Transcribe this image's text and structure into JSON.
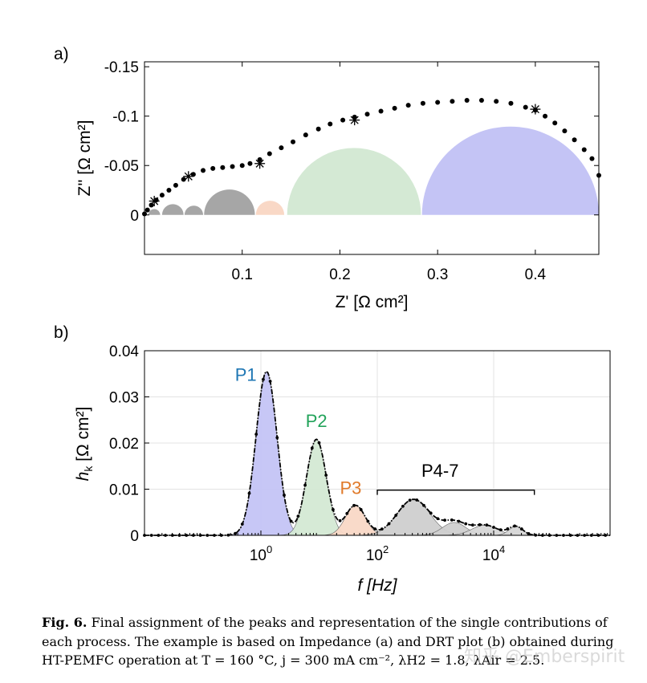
{
  "figure": {
    "caption_label": "Fig. 6.",
    "caption_text": "Final assignment of the peaks and representation of the single contributions of each process. The example is based on Impedance (a) and DRT plot (b) obtained during HT-PEMFC operation at T = 160 °C, j = 300 mA cm⁻², λH2 = 1.8, λAir = 2.5.",
    "watermark": "知乎 @Emberspirit"
  },
  "colors": {
    "arc1": "#a6a6a6",
    "arc2": "#a6a6a6",
    "arc3": "#a6a6a6",
    "p1": "#c4c4f5",
    "p2": "#d4e9d4",
    "p3": "#f9d8c6",
    "p4": "#cfcfcf",
    "p5": "#d6d6d6",
    "p1_label": "#1f77b4",
    "p2_label": "#22a35a",
    "p3_label": "#e07a2a",
    "p47_label": "#000000",
    "marker": "#000000"
  },
  "chart_data": [
    {
      "panel_label": "a)",
      "type": "scatter",
      "xlabel": "Z' [Ω cm²]",
      "ylabel": "Z'' [Ω cm²]",
      "xlim": [
        0,
        0.465
      ],
      "ylim": [
        0.04,
        -0.155
      ],
      "y_reversed": true,
      "xticks": [
        0.1,
        0.2,
        0.3,
        0.4
      ],
      "xtick_labels": [
        "0.1",
        "0.2",
        "0.3",
        "0.4"
      ],
      "yticks": [
        0,
        -0.05,
        -0.1,
        -0.15
      ],
      "ytick_labels": [
        "0",
        "-0.05",
        "-0.1",
        "-0.15"
      ],
      "grid": false,
      "measured": {
        "x": [
          0.0,
          0.003,
          0.007,
          0.012,
          0.018,
          0.025,
          0.032,
          0.04,
          0.05,
          0.06,
          0.07,
          0.08,
          0.09,
          0.1,
          0.108,
          0.118,
          0.128,
          0.14,
          0.152,
          0.165,
          0.178,
          0.19,
          0.203,
          0.215,
          0.228,
          0.242,
          0.256,
          0.27,
          0.285,
          0.3,
          0.315,
          0.33,
          0.345,
          0.36,
          0.375,
          0.39,
          0.4,
          0.41,
          0.42,
          0.43,
          0.44,
          0.45,
          0.458,
          0.465
        ],
        "y": [
          -0.001,
          -0.005,
          -0.01,
          -0.015,
          -0.02,
          -0.025,
          -0.03,
          -0.036,
          -0.041,
          -0.045,
          -0.047,
          -0.048,
          -0.049,
          -0.05,
          -0.052,
          -0.056,
          -0.062,
          -0.068,
          -0.074,
          -0.081,
          -0.087,
          -0.092,
          -0.096,
          -0.099,
          -0.102,
          -0.105,
          -0.108,
          -0.111,
          -0.113,
          -0.114,
          -0.115,
          -0.116,
          -0.116,
          -0.115,
          -0.113,
          -0.109,
          -0.106,
          -0.1,
          -0.093,
          -0.085,
          -0.076,
          -0.066,
          -0.057,
          -0.04
        ]
      },
      "stars": {
        "x": [
          0.01,
          0.045,
          0.118,
          0.215,
          0.4
        ],
        "y": [
          -0.014,
          -0.039,
          -0.052,
          -0.096,
          -0.107
        ]
      },
      "arcs": [
        {
          "x0": 0.004,
          "x1": 0.016,
          "color_key": "arc1"
        },
        {
          "x0": 0.018,
          "x1": 0.04,
          "color_key": "arc1"
        },
        {
          "x0": 0.041,
          "x1": 0.06,
          "color_key": "arc2"
        },
        {
          "x0": 0.061,
          "x1": 0.113,
          "color_key": "arc3"
        },
        {
          "x0": 0.114,
          "x1": 0.143,
          "color_key": "p3"
        },
        {
          "x0": 0.146,
          "x1": 0.283,
          "color_key": "p2"
        },
        {
          "x0": 0.284,
          "x1": 0.465,
          "color_key": "p1"
        }
      ]
    },
    {
      "panel_label": "b)",
      "type": "line",
      "xlabel": "f [Hz]",
      "ylabel_main": "h",
      "ylabel_sub": "k",
      "ylabel_unit": " [Ω cm²]",
      "x_scale": "log",
      "xlim": [
        0.01,
        1000000
      ],
      "ylim": [
        0,
        0.04
      ],
      "xticks": [
        1,
        100,
        10000
      ],
      "xtick_bases": [
        "10",
        "10",
        "10"
      ],
      "xtick_exps": [
        "0",
        "2",
        "4"
      ],
      "yticks": [
        0,
        0.01,
        0.02,
        0.03,
        0.04
      ],
      "ytick_labels": [
        "0",
        "0.01",
        "0.02",
        "0.03",
        "0.04"
      ],
      "grid": true,
      "peaks": [
        {
          "name": "P1",
          "center": 1.25,
          "height": 0.0355,
          "sigma_decades": 0.18,
          "color_key": "p1",
          "label_color_key": "p1_label",
          "label_x": 0.55,
          "label_y": 0.0335
        },
        {
          "name": "P2",
          "center": 9.0,
          "height": 0.0208,
          "sigma_decades": 0.17,
          "color_key": "p2",
          "label_color_key": "p2_label",
          "label_x": 9.0,
          "label_y": 0.0235
        },
        {
          "name": "P3",
          "center": 42.0,
          "height": 0.0065,
          "sigma_decades": 0.17,
          "color_key": "p3",
          "label_color_key": "p3_label",
          "label_x": 35.0,
          "label_y": 0.009
        },
        {
          "name": "",
          "center": 420.0,
          "height": 0.0078,
          "sigma_decades": 0.28,
          "color_key": "p4"
        },
        {
          "name": "",
          "center": 2100.0,
          "height": 0.0028,
          "sigma_decades": 0.2,
          "color_key": "p4"
        },
        {
          "name": "",
          "center": 7000.0,
          "height": 0.0022,
          "sigma_decades": 0.22,
          "color_key": "p5"
        },
        {
          "name": "",
          "center": 24000.0,
          "height": 0.0019,
          "sigma_decades": 0.12,
          "color_key": "p5"
        }
      ],
      "bracket": {
        "label": "P4-7",
        "x0": 100,
        "x1": 50000,
        "y": 0.0098,
        "label_x": 1200,
        "label_y": 0.0127
      }
    }
  ]
}
